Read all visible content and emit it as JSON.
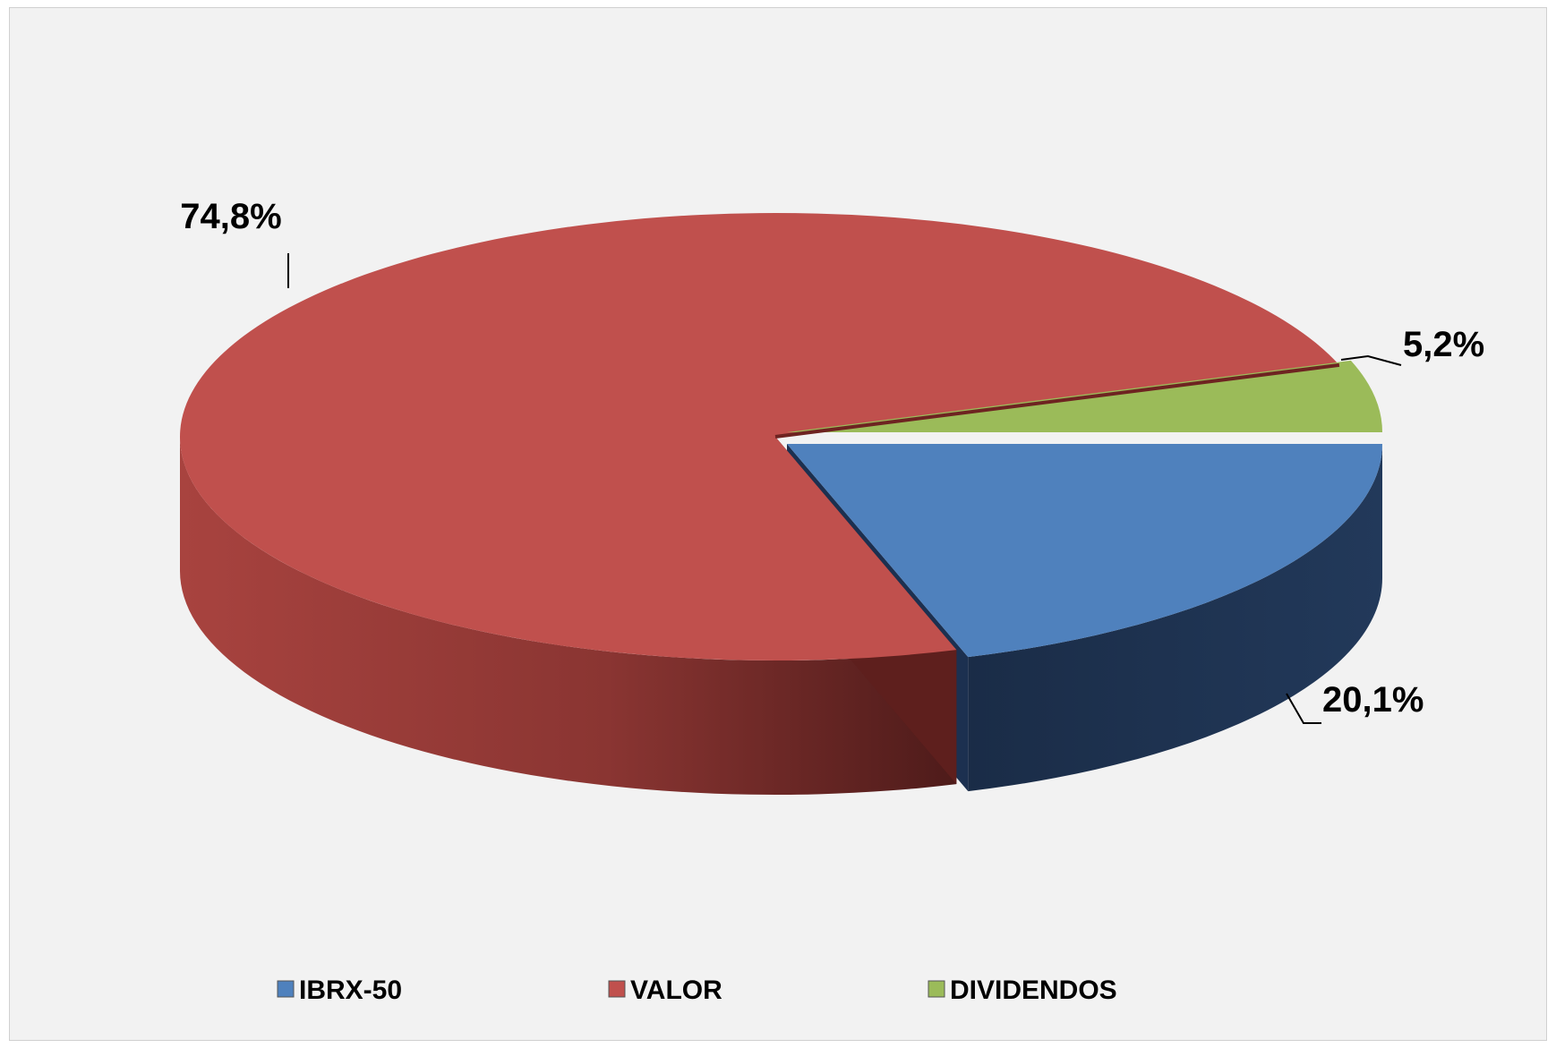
{
  "chart_data": {
    "type": "pie",
    "style": "3d-exploded",
    "series": [
      {
        "name": "IBRX-50",
        "value": 20.1,
        "label": "20,1%",
        "color": "#4f81bd",
        "side_color": "#1f3350"
      },
      {
        "name": "VALOR",
        "value": 74.8,
        "label": "74,8%",
        "color": "#c0504d",
        "side_color": "#8e3a37"
      },
      {
        "name": "DIVIDENDOS",
        "value": 5.2,
        "label": "5,2%",
        "color": "#9bbb59",
        "side_color": "#5f7530"
      }
    ],
    "legend_position": "bottom"
  }
}
